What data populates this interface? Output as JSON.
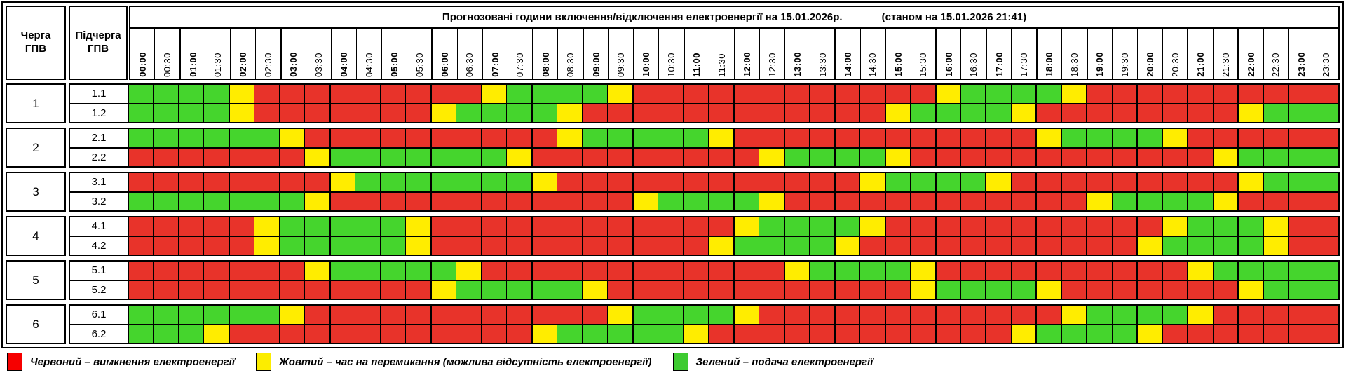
{
  "header": {
    "queue_col": "Черга\nГПВ",
    "subqueue_col": "Підчерга\nГПВ",
    "title": "Прогнозовані години включення/відключення електроенергії на 15.01.2026р.",
    "status": "(станом на 15.01.2026 21:41)"
  },
  "times": [
    "00:00",
    "00:30",
    "01:00",
    "01:30",
    "02:00",
    "02:30",
    "03:00",
    "03:30",
    "04:00",
    "04:30",
    "05:00",
    "05:30",
    "06:00",
    "06:30",
    "07:00",
    "07:30",
    "08:00",
    "08:30",
    "09:00",
    "09:30",
    "10:00",
    "10:30",
    "11:00",
    "11:30",
    "12:00",
    "12:30",
    "13:00",
    "13:30",
    "14:00",
    "14:30",
    "15:00",
    "15:30",
    "16:00",
    "16:30",
    "17:00",
    "17:30",
    "18:00",
    "18:30",
    "19:00",
    "19:30",
    "20:00",
    "20:30",
    "21:00",
    "21:30",
    "22:00",
    "22:30",
    "23:00",
    "23:30"
  ],
  "colors": {
    "R": "#e8332a",
    "Y": "#ffed00",
    "G": "#45d52d"
  },
  "groups": [
    {
      "queue": "1",
      "rows": [
        {
          "label": "1.1",
          "cells": "GGGGYRRRRRRRRRYGGGGYRRRRRRRRRRRRYGGGGYRRRRRRRRRR"
        },
        {
          "label": "1.2",
          "cells": "GGGGYRRRRRRRYGGGGYRRRRRRRRRRRRYGGGGYRRRRRRRRYGGG"
        }
      ]
    },
    {
      "queue": "2",
      "rows": [
        {
          "label": "2.1",
          "cells": "GGGGGGYRRRRRRRRRRYGGGGGYRRRRRRRRRRRRYGGGGYRRRRRR"
        },
        {
          "label": "2.2",
          "cells": "RRRRRRRYGGGGGGGYRRRRRRRRRYGGGGYRRRRRRRRRRRRYGGGG"
        }
      ]
    },
    {
      "queue": "3",
      "rows": [
        {
          "label": "3.1",
          "cells": "RRRRRRRRYGGGGGGGYRRRRRRRRRRRRYGGGGYRRRRRRRRRYGGG"
        },
        {
          "label": "3.2",
          "cells": "GGGGGGGYRRRRRRRRRRRRYGGGGYRRRRRRRRRRRRYGGGGYRRRR"
        }
      ]
    },
    {
      "queue": "4",
      "rows": [
        {
          "label": "4.1",
          "cells": "RRRRRYGGGGGYRRRRRRRRRRRRYGGGGYRRRRRRRRRRRYGGGYRR"
        },
        {
          "label": "4.2",
          "cells": "RRRRRYGGGGGYRRRRRRRRRRRYGGGGYRRRRRRRRRRRYGGGGYRR"
        }
      ]
    },
    {
      "queue": "5",
      "rows": [
        {
          "label": "5.1",
          "cells": "RRRRRRRYGGGGGYRRRRRRRRRRRRYGGGGYRRRRRRRRRRYGGGGG"
        },
        {
          "label": "5.2",
          "cells": "RRRRRRRRRRRRYGGGGGYRRRRRRRRRRRRYGGGGYRRRRRRRYGGG"
        }
      ]
    },
    {
      "queue": "6",
      "rows": [
        {
          "label": "6.1",
          "cells": "GGGGGGYRRRRRRRRRRRRYGGGGYRRRRRRRRRRRRYGGGGYRRRRR"
        },
        {
          "label": "6.2",
          "cells": "GGGYRRRRRRRRRRRRYGGGGGYRRRRRRRRRRRRYGGGGYRRRRRRR"
        }
      ]
    }
  ],
  "legend": [
    {
      "key": "R",
      "color": "#f60000",
      "label": "Червоний – вимкнення електроенергії"
    },
    {
      "key": "Y",
      "color": "#fced00",
      "label": "Жовтий – час на перемикання (можлива відсутність електроенергії)"
    },
    {
      "key": "G",
      "color": "#3ecb31",
      "label": "Зелений – подача електроенергії"
    }
  ]
}
